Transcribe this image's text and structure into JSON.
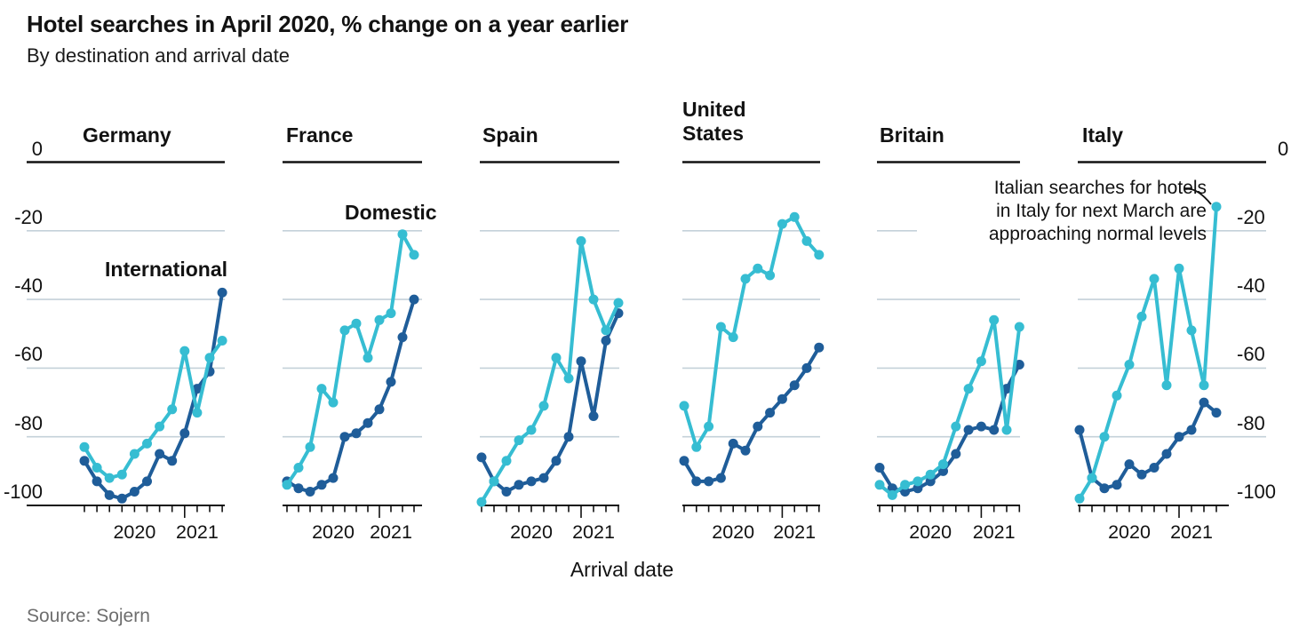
{
  "header": {
    "title": "Hotel searches in April 2020, % change on a year earlier",
    "subtitle": "By destination and arrival date"
  },
  "colors": {
    "domestic": "#36bdd2",
    "international": "#1f5d99",
    "gridline": "#c4d1d9",
    "axis_black": "#121212",
    "source_grey": "#6e6e6e"
  },
  "legend": {
    "domestic_label": "Domestic",
    "international_label": "International"
  },
  "axis": {
    "y_ticks": [
      "0",
      "-20",
      "-40",
      "-60",
      "-80",
      "-100"
    ],
    "y_tick_values": [
      0,
      -20,
      -40,
      -60,
      -80,
      -100
    ],
    "year_labels": [
      "2020",
      "2021"
    ],
    "x_label": "Arrival date"
  },
  "annotation": {
    "line1": "Italian searches for hotels",
    "line2": "in Italy for next March are",
    "line3": "approaching normal levels"
  },
  "source": "Source: Sojern",
  "chart_data": {
    "type": "line",
    "title": "Hotel searches in April 2020, % change on a year earlier",
    "subtitle": "By destination and arrival date",
    "xlabel": "Arrival date",
    "ylabel": "% change on a year earlier",
    "ylim": [
      -100,
      0
    ],
    "grid": true,
    "x_tick_count": 12,
    "x_months_estimated": [
      "Apr 2020",
      "May 2020",
      "Jun 2020",
      "Jul 2020",
      "Aug 2020",
      "Sep 2020",
      "Oct 2020",
      "Nov 2020",
      "Dec 2020",
      "Jan 2021",
      "Feb 2021",
      "Mar 2021"
    ],
    "panels": [
      {
        "country": "Germany",
        "country_lines": [
          "Germany"
        ],
        "series": [
          {
            "name": "International",
            "values": [
              -87,
              -93,
              -97,
              -98,
              -96,
              -93,
              -85,
              -87,
              -79,
              -66,
              -61,
              -38
            ]
          },
          {
            "name": "Domestic",
            "values": [
              -83,
              -89,
              -92,
              -91,
              -85,
              -82,
              -77,
              -72,
              -55,
              -73,
              -57,
              -52
            ]
          }
        ]
      },
      {
        "country": "France",
        "country_lines": [
          "France"
        ],
        "series": [
          {
            "name": "International",
            "values": [
              -93,
              -95,
              -96,
              -94,
              -92,
              -80,
              -79,
              -76,
              -72,
              -64,
              -51,
              -40
            ]
          },
          {
            "name": "Domestic",
            "values": [
              -94,
              -89,
              -83,
              -66,
              -70,
              -49,
              -47,
              -57,
              -46,
              -44,
              -21,
              -27
            ]
          }
        ]
      },
      {
        "country": "Spain",
        "country_lines": [
          "Spain"
        ],
        "series": [
          {
            "name": "International",
            "values": [
              -86,
              -93,
              -96,
              -94,
              -93,
              -92,
              -87,
              -80,
              -58,
              -74,
              -52,
              -44
            ]
          },
          {
            "name": "Domestic",
            "values": [
              -99,
              -93,
              -87,
              -81,
              -78,
              -71,
              -57,
              -63,
              -23,
              -40,
              -49,
              -41
            ]
          }
        ]
      },
      {
        "country": "United States",
        "country_lines": [
          "United",
          "States"
        ],
        "series": [
          {
            "name": "International",
            "values": [
              -87,
              -93,
              -93,
              -92,
              -82,
              -84,
              -77,
              -73,
              -69,
              -65,
              -60,
              -54
            ]
          },
          {
            "name": "Domestic",
            "values": [
              -71,
              -83,
              -77,
              -48,
              -51,
              -34,
              -31,
              -33,
              -18,
              -16,
              -23,
              -27
            ]
          }
        ]
      },
      {
        "country": "Britain",
        "country_lines": [
          "Britain"
        ],
        "series": [
          {
            "name": "International",
            "values": [
              -89,
              -95,
              -96,
              -95,
              -93,
              -90,
              -85,
              -78,
              -77,
              -78,
              -66,
              -59
            ]
          },
          {
            "name": "Domestic",
            "values": [
              -94,
              -97,
              -94,
              -93,
              -91,
              -88,
              -77,
              -66,
              -58,
              -46,
              -78,
              -48
            ]
          }
        ]
      },
      {
        "country": "Italy",
        "country_lines": [
          "Italy"
        ],
        "series": [
          {
            "name": "International",
            "values": [
              -78,
              -92,
              -95,
              -94,
              -88,
              -91,
              -89,
              -85,
              -80,
              -78,
              -70,
              -73
            ]
          },
          {
            "name": "Domestic",
            "values": [
              -98,
              -92,
              -80,
              -68,
              -59,
              -45,
              -34,
              -65,
              -31,
              -49,
              -65,
              -13
            ]
          }
        ]
      }
    ],
    "legend_entries": [
      "Domestic",
      "International"
    ],
    "annotation_text": "Italian searches for hotels in Italy for next March are approaching normal levels"
  }
}
